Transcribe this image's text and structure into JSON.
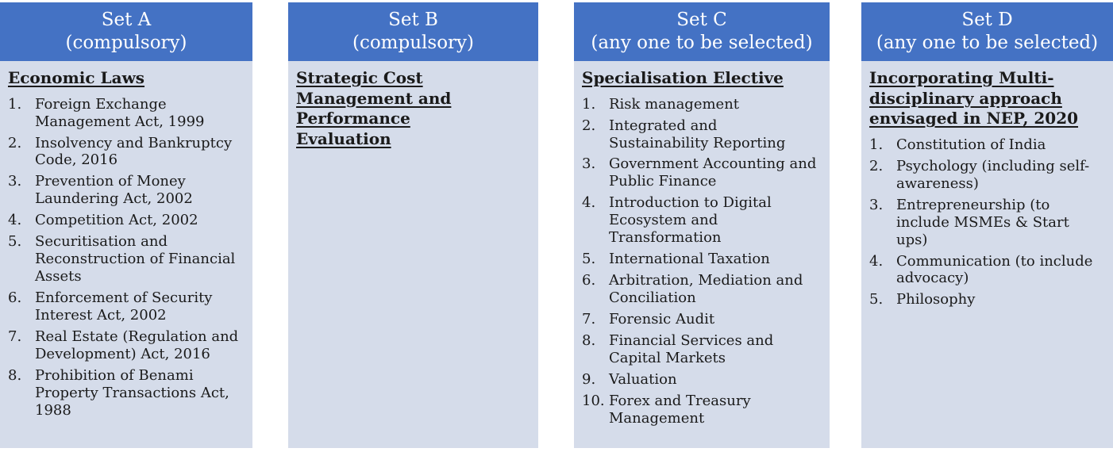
{
  "colors": {
    "header_bg": "#4472C4",
    "body_bg": "#D5DCEA",
    "header_text": "#FFFFFF",
    "body_text": "#1a1a1a"
  },
  "columns": [
    {
      "title": "Set A",
      "subtitle": "(compulsory)",
      "heading": "Economic Laws",
      "items": [
        "Foreign Exchange Management Act, 1999",
        "Insolvency and Bankruptcy Code, 2016",
        "Prevention of Money Laundering Act, 2002",
        "Competition Act, 2002",
        "Securitisation and Reconstruction of Financial Assets",
        "Enforcement of Security Interest Act, 2002",
        "Real Estate (Regulation and Development) Act, 2016",
        "Prohibition of Benami Property Transactions Act, 1988"
      ]
    },
    {
      "title": "Set B",
      "subtitle": "(compulsory)",
      "heading": "Strategic Cost Management and Performance Evaluation",
      "items": []
    },
    {
      "title": "Set C",
      "subtitle": "(any one to be selected)",
      "heading": "Specialisation Elective",
      "items": [
        "Risk management",
        "Integrated and Sustainability Reporting",
        "Government Accounting and Public Finance",
        "Introduction to Digital Ecosystem and Transformation",
        "International Taxation",
        "Arbitration, Mediation and Conciliation",
        "Forensic Audit",
        "Financial Services and Capital Markets",
        "Valuation",
        "Forex and Treasury Management"
      ]
    },
    {
      "title": "Set D",
      "subtitle": "(any one to be selected)",
      "heading": "Incorporating Multi-disciplinary approach envisaged in NEP, 2020",
      "items": [
        "Constitution of India",
        "Psychology (including self-awareness)",
        "Entrepreneurship (to include MSMEs & Start ups)",
        "Communication (to include advocacy)",
        "Philosophy"
      ]
    }
  ]
}
